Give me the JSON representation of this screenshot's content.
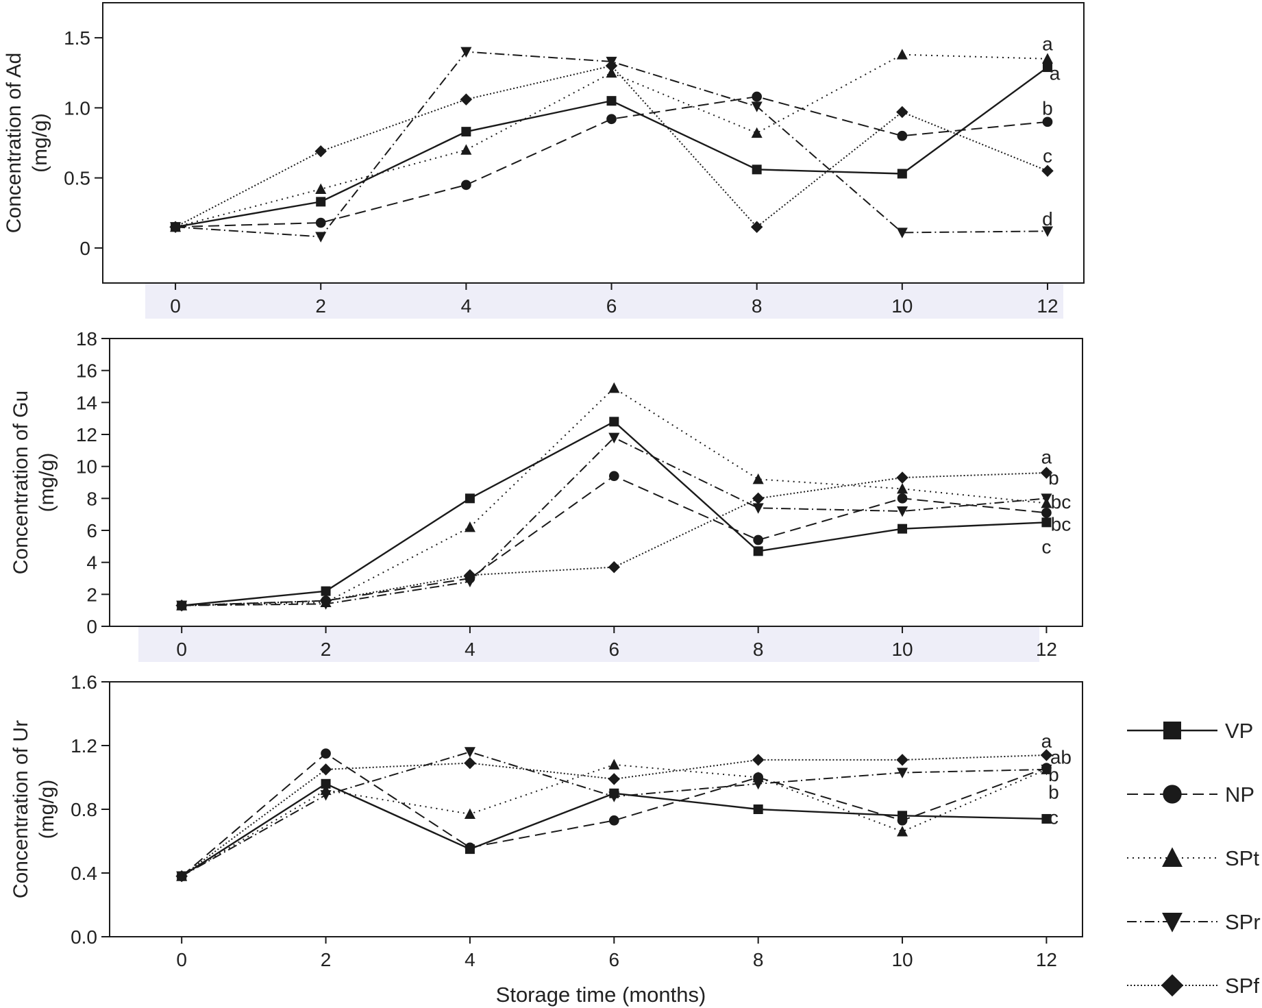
{
  "colors": {
    "ink": "#1a1a1a",
    "band": "#eeeef8"
  },
  "legend": {
    "items": [
      {
        "label": "VP",
        "marker": "square",
        "dash": "solid"
      },
      {
        "label": "NP",
        "marker": "circle",
        "dash": "dashed"
      },
      {
        "label": "SPt",
        "marker": "triangle-up",
        "dash": "dotted"
      },
      {
        "label": "SPr",
        "marker": "triangle-down",
        "dash": "dashdot"
      },
      {
        "label": "SPf",
        "marker": "diamond",
        "dash": "densedot"
      }
    ]
  },
  "xlabel": "Storage time (months)",
  "chart_data": [
    {
      "type": "line",
      "id": "ad",
      "ylabel_lines": [
        "Concentration of Ad",
        "(mg/g)"
      ],
      "x": [
        0,
        2,
        4,
        6,
        8,
        10,
        12
      ],
      "xlim": [
        -1,
        12.5
      ],
      "ylim": [
        -0.25,
        1.75
      ],
      "yticks": [
        0,
        0.5,
        1.0,
        1.5
      ],
      "ytick_labels": [
        "0",
        "0.5",
        "1.0",
        "1.5"
      ],
      "series": [
        {
          "name": "VP",
          "values": [
            0.15,
            0.33,
            0.83,
            1.05,
            0.56,
            0.53,
            1.29
          ]
        },
        {
          "name": "NP",
          "values": [
            0.15,
            0.18,
            0.45,
            0.92,
            1.08,
            0.8,
            0.9
          ]
        },
        {
          "name": "SPt",
          "values": [
            0.15,
            0.42,
            0.7,
            1.25,
            0.82,
            1.38,
            1.35
          ]
        },
        {
          "name": "SPr",
          "values": [
            0.15,
            0.08,
            1.4,
            1.33,
            1.01,
            0.11,
            0.12
          ]
        },
        {
          "name": "SPf",
          "values": [
            0.15,
            0.69,
            1.06,
            1.3,
            0.15,
            0.97,
            0.55
          ]
        }
      ],
      "annotations": [
        {
          "text": "a",
          "x": 12,
          "y": 1.46
        },
        {
          "text": "a",
          "x": 12.1,
          "y": 1.25
        },
        {
          "text": "b",
          "x": 12,
          "y": 1.0
        },
        {
          "text": "c",
          "x": 12,
          "y": 0.66
        },
        {
          "text": "d",
          "x": 12,
          "y": 0.21
        }
      ]
    },
    {
      "type": "line",
      "id": "gu",
      "ylabel_lines": [
        "Concentration of Gu",
        "(mg/g)"
      ],
      "x": [
        0,
        2,
        4,
        6,
        8,
        10,
        12
      ],
      "xlim": [
        -1,
        12.5
      ],
      "ylim": [
        0,
        18
      ],
      "yticks": [
        0,
        2,
        4,
        6,
        8,
        10,
        12,
        14,
        16,
        18
      ],
      "ytick_labels": [
        "0",
        "2",
        "4",
        "6",
        "8",
        "10",
        "12",
        "14",
        "16",
        "18"
      ],
      "series": [
        {
          "name": "VP",
          "values": [
            1.3,
            2.2,
            8.0,
            12.8,
            4.7,
            6.1,
            6.5
          ]
        },
        {
          "name": "NP",
          "values": [
            1.3,
            1.6,
            3.0,
            9.4,
            5.4,
            8.0,
            7.1
          ]
        },
        {
          "name": "SPt",
          "values": [
            1.3,
            1.5,
            6.2,
            14.9,
            9.2,
            8.6,
            7.7
          ]
        },
        {
          "name": "SPr",
          "values": [
            1.3,
            1.4,
            2.8,
            11.8,
            7.4,
            7.2,
            8.0
          ]
        },
        {
          "name": "SPf",
          "values": [
            1.3,
            1.6,
            3.2,
            3.7,
            8.0,
            9.3,
            9.6
          ]
        }
      ],
      "annotations": [
        {
          "text": "a",
          "x": 12,
          "y": 10.6
        },
        {
          "text": "b",
          "x": 12.1,
          "y": 9.3
        },
        {
          "text": "bc",
          "x": 12.2,
          "y": 7.8
        },
        {
          "text": "bc",
          "x": 12.2,
          "y": 6.4
        },
        {
          "text": "c",
          "x": 12,
          "y": 5.0
        }
      ]
    },
    {
      "type": "line",
      "id": "ur",
      "ylabel_lines": [
        "Concentration of Ur",
        "(mg/g)"
      ],
      "x": [
        0,
        2,
        4,
        6,
        8,
        10,
        12
      ],
      "xlim": [
        -1,
        12.5
      ],
      "ylim": [
        0.0,
        1.6
      ],
      "yticks": [
        0.0,
        0.4,
        0.8,
        1.2,
        1.6
      ],
      "ytick_labels": [
        "0.0",
        "0.4",
        "0.8",
        "1.2",
        "1.6"
      ],
      "series": [
        {
          "name": "VP",
          "values": [
            0.38,
            0.96,
            0.55,
            0.9,
            0.8,
            0.76,
            0.74
          ]
        },
        {
          "name": "NP",
          "values": [
            0.38,
            1.15,
            0.56,
            0.73,
            1.0,
            0.73,
            1.06
          ]
        },
        {
          "name": "SPt",
          "values": [
            0.38,
            0.92,
            0.77,
            1.08,
            1.0,
            0.66,
            1.05
          ]
        },
        {
          "name": "SPr",
          "values": [
            0.38,
            0.89,
            1.16,
            0.88,
            0.96,
            1.03,
            1.05
          ]
        },
        {
          "name": "SPf",
          "values": [
            0.38,
            1.05,
            1.09,
            0.99,
            1.11,
            1.11,
            1.14
          ]
        }
      ],
      "annotations": [
        {
          "text": "a",
          "x": 12,
          "y": 1.23
        },
        {
          "text": "ab",
          "x": 12.2,
          "y": 1.13
        },
        {
          "text": "b",
          "x": 12.1,
          "y": 1.02
        },
        {
          "text": "b",
          "x": 12.1,
          "y": 0.91
        },
        {
          "text": "c",
          "x": 12.1,
          "y": 0.75
        }
      ]
    }
  ]
}
